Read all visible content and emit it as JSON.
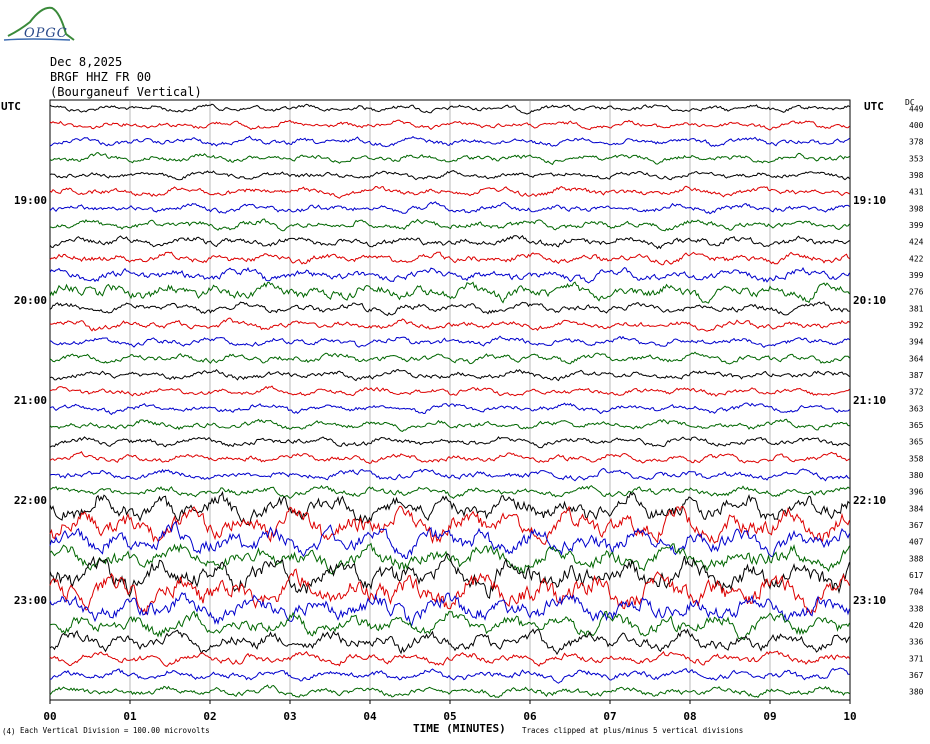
{
  "logo": {
    "text": "OPGC"
  },
  "header": {
    "date": "Dec 8,2025",
    "station": "BRGF HHZ FR 00",
    "location": "(Bourganeuf Vertical)"
  },
  "labels": {
    "utc_left": "UTC",
    "utc_right": "UTC",
    "dc": "DC"
  },
  "footer": {
    "left_mark": "(4)",
    "scale_note": "Each Vertical Division =  100.00 microvolts",
    "clip_note": "Traces clipped at plus/minus 5 vertical divisions"
  },
  "chart_data": {
    "type": "line",
    "title": "",
    "xlabel": "TIME (MINUTES)",
    "ylabel": "",
    "x_range": [
      0,
      10
    ],
    "x_ticks": [
      "00",
      "01",
      "02",
      "03",
      "04",
      "05",
      "06",
      "07",
      "08",
      "09",
      "10"
    ],
    "grid": true,
    "trace_colors": [
      "#000000",
      "#dd0000",
      "#0000cc",
      "#006600"
    ],
    "trace_count": 36,
    "left_time_labels": [
      {
        "row": 6,
        "label": "19:00"
      },
      {
        "row": 12,
        "label": "20:00"
      },
      {
        "row": 18,
        "label": "21:00"
      },
      {
        "row": 24,
        "label": "22:00"
      },
      {
        "row": 30,
        "label": "23:00"
      }
    ],
    "right_time_labels": [
      {
        "row": 6,
        "label": "19:10"
      },
      {
        "row": 12,
        "label": "20:10"
      },
      {
        "row": 18,
        "label": "21:10"
      },
      {
        "row": 24,
        "label": "22:10"
      },
      {
        "row": 30,
        "label": "23:10"
      }
    ],
    "dc_offsets": [
      449,
      400,
      378,
      353,
      398,
      431,
      398,
      399,
      424,
      422,
      399,
      276,
      381,
      392,
      394,
      364,
      387,
      372,
      363,
      365,
      365,
      358,
      380,
      396,
      384,
      367,
      407,
      388,
      617,
      704,
      338,
      420,
      336,
      371,
      367,
      380
    ],
    "trace_amplitude": [
      1.0,
      1.0,
      1.1,
      1.1,
      1.0,
      1.2,
      1.2,
      1.3,
      1.4,
      1.4,
      1.7,
      2.2,
      1.4,
      1.3,
      1.2,
      1.2,
      1.2,
      1.1,
      1.2,
      1.2,
      1.2,
      1.2,
      1.3,
      1.4,
      3.5,
      4.0,
      3.6,
      3.4,
      4.5,
      4.5,
      3.5,
      3.0,
      2.6,
      1.6,
      1.4,
      1.3
    ],
    "clip_divisions": 5,
    "scale_microvolts_per_division": 100.0
  }
}
